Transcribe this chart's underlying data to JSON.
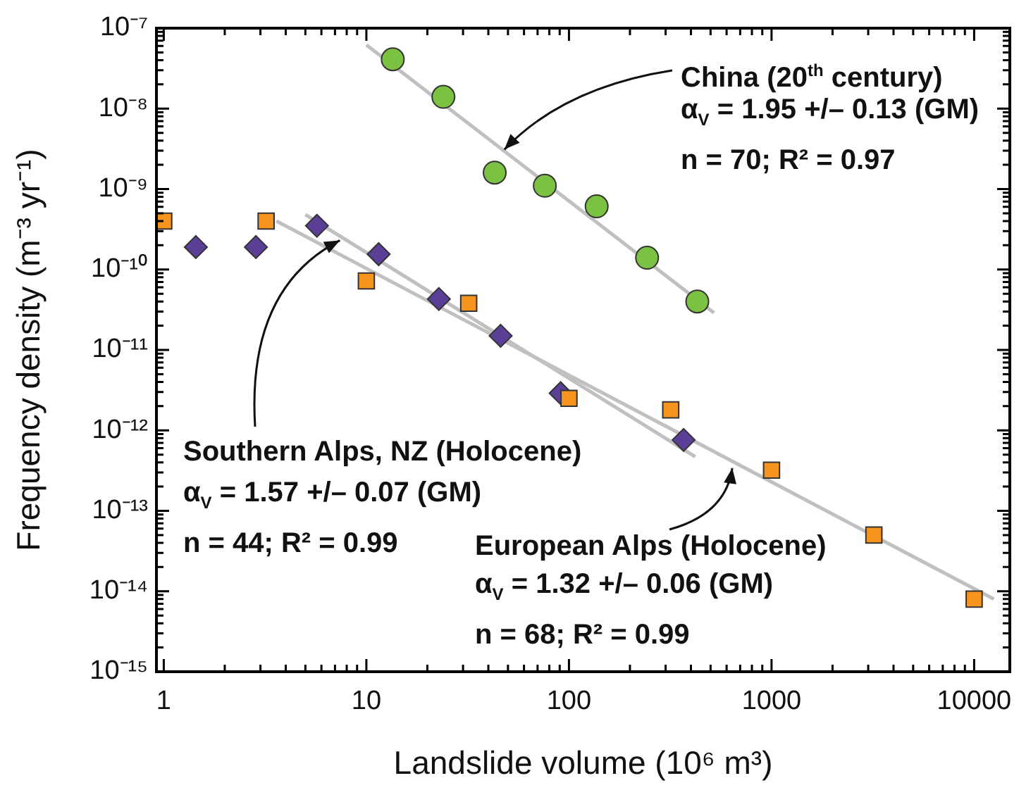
{
  "chart_data": {
    "type": "scatter",
    "xlabel": "Landslide volume (10⁶ m³)",
    "ylabel": "Frequency density (m⁻³ yr⁻¹)",
    "log": "xy",
    "grid": false,
    "legend": false,
    "xlim": [
      0.92,
      15000
    ],
    "ylim": [
      1e-15,
      1e-07
    ],
    "xticks": [
      1,
      {
        "value": 2,
        "label": null
      },
      {
        "value": 3,
        "label": null
      },
      {
        "value": 4,
        "label": null
      },
      {
        "value": 5,
        "label": null
      },
      {
        "value": 6,
        "label": null
      },
      {
        "value": 7,
        "label": null
      },
      {
        "value": 8,
        "label": null
      },
      {
        "value": 9,
        "label": null
      },
      10,
      {
        "value": 20,
        "label": null
      },
      {
        "value": 30,
        "label": null
      },
      {
        "value": 40,
        "label": null
      },
      {
        "value": 50,
        "label": null
      },
      {
        "value": 60,
        "label": null
      },
      {
        "value": 70,
        "label": null
      },
      {
        "value": 80,
        "label": null
      },
      {
        "value": 90,
        "label": null
      },
      100,
      {
        "value": 200,
        "label": null
      },
      {
        "value": 300,
        "label": null
      },
      {
        "value": 400,
        "label": null
      },
      {
        "value": 500,
        "label": null
      },
      {
        "value": 600,
        "label": null
      },
      {
        "value": 700,
        "label": null
      },
      {
        "value": 800,
        "label": null
      },
      {
        "value": 900,
        "label": null
      },
      1000,
      {
        "value": 2000,
        "label": null
      },
      {
        "value": 3000,
        "label": null
      },
      {
        "value": 4000,
        "label": null
      },
      {
        "value": 5000,
        "label": null
      },
      {
        "value": 6000,
        "label": null
      },
      {
        "value": 7000,
        "label": null
      },
      {
        "value": 8000,
        "label": null
      },
      {
        "value": 9000,
        "label": null
      },
      10000
    ],
    "yticks": [
      {
        "value": 1e-15,
        "label": "10⁻¹⁵"
      },
      {
        "value": 2e-15,
        "label": null
      },
      {
        "value": 3e-15,
        "label": null
      },
      {
        "value": 4e-15,
        "label": null
      },
      {
        "value": 5e-15,
        "label": null
      },
      {
        "value": 6e-15,
        "label": null
      },
      {
        "value": 7e-15,
        "label": null
      },
      {
        "value": 8e-15,
        "label": null
      },
      {
        "value": 9e-15,
        "label": null
      },
      {
        "value": 1e-14,
        "label": "10⁻¹⁴"
      },
      {
        "value": 2e-14,
        "label": null
      },
      {
        "value": 3e-14,
        "label": null
      },
      {
        "value": 4e-14,
        "label": null
      },
      {
        "value": 5e-14,
        "label": null
      },
      {
        "value": 6e-14,
        "label": null
      },
      {
        "value": 7e-14,
        "label": null
      },
      {
        "value": 8e-14,
        "label": null
      },
      {
        "value": 9e-14,
        "label": null
      },
      {
        "value": 1e-13,
        "label": "10⁻¹³"
      },
      {
        "value": 2e-13,
        "label": null
      },
      {
        "value": 3e-13,
        "label": null
      },
      {
        "value": 4e-13,
        "label": null
      },
      {
        "value": 5e-13,
        "label": null
      },
      {
        "value": 6e-13,
        "label": null
      },
      {
        "value": 7e-13,
        "label": null
      },
      {
        "value": 8e-13,
        "label": null
      },
      {
        "value": 9e-13,
        "label": null
      },
      {
        "value": 1e-12,
        "label": "10⁻¹²"
      },
      {
        "value": 2e-12,
        "label": null
      },
      {
        "value": 3e-12,
        "label": null
      },
      {
        "value": 4e-12,
        "label": null
      },
      {
        "value": 5e-12,
        "label": null
      },
      {
        "value": 6e-12,
        "label": null
      },
      {
        "value": 7e-12,
        "label": null
      },
      {
        "value": 8e-12,
        "label": null
      },
      {
        "value": 9e-12,
        "label": null
      },
      {
        "value": 1e-11,
        "label": "10⁻¹¹"
      },
      {
        "value": 2e-11,
        "label": null
      },
      {
        "value": 3e-11,
        "label": null
      },
      {
        "value": 4e-11,
        "label": null
      },
      {
        "value": 5e-11,
        "label": null
      },
      {
        "value": 6e-11,
        "label": null
      },
      {
        "value": 7e-11,
        "label": null
      },
      {
        "value": 8e-11,
        "label": null
      },
      {
        "value": 9e-11,
        "label": null
      },
      {
        "value": 1e-10,
        "label": "10⁻¹⁰"
      },
      {
        "value": 2e-10,
        "label": null
      },
      {
        "value": 3e-10,
        "label": null
      },
      {
        "value": 4e-10,
        "label": null
      },
      {
        "value": 5e-10,
        "label": null
      },
      {
        "value": 6e-10,
        "label": null
      },
      {
        "value": 7e-10,
        "label": null
      },
      {
        "value": 8e-10,
        "label": null
      },
      {
        "value": 9e-10,
        "label": null
      },
      {
        "value": 1e-09,
        "label": "10⁻⁹"
      },
      {
        "value": 2e-09,
        "label": null
      },
      {
        "value": 3e-09,
        "label": null
      },
      {
        "value": 4e-09,
        "label": null
      },
      {
        "value": 5e-09,
        "label": null
      },
      {
        "value": 6e-09,
        "label": null
      },
      {
        "value": 7e-09,
        "label": null
      },
      {
        "value": 8e-09,
        "label": null
      },
      {
        "value": 9e-09,
        "label": null
      },
      {
        "value": 1e-08,
        "label": "10⁻⁸"
      },
      {
        "value": 2e-08,
        "label": null
      },
      {
        "value": 3e-08,
        "label": null
      },
      {
        "value": 4e-08,
        "label": null
      },
      {
        "value": 5e-08,
        "label": null
      },
      {
        "value": 6e-08,
        "label": null
      },
      {
        "value": 7e-08,
        "label": null
      },
      {
        "value": 8e-08,
        "label": null
      },
      {
        "value": 9e-08,
        "label": null
      },
      {
        "value": 1e-07,
        "label": "10⁻⁷"
      }
    ],
    "series": [
      {
        "type": "line",
        "color": "#c0c0c0",
        "marker": "none",
        "x": [
          10,
          520
        ],
        "values": [
          6.2e-08,
          2.9e-11
        ]
      },
      {
        "type": "line",
        "color": "#c0c0c0",
        "marker": "none",
        "x": [
          5,
          420
        ],
        "values": [
          4.8e-10,
          4.7e-13
        ]
      },
      {
        "type": "line",
        "color": "#c0c0c0",
        "marker": "none",
        "x": [
          3.6,
          12500
        ],
        "values": [
          4e-10,
          8e-15
        ]
      },
      {
        "type": "scatter",
        "color": "#7cc242",
        "marker": "circle",
        "x": [
          13.5,
          24,
          43,
          76,
          137,
          243,
          430
        ],
        "values": [
          4.1e-08,
          1.4e-08,
          1.6e-09,
          1.1e-09,
          6.1e-10,
          1.4e-10,
          4e-11
        ]
      },
      {
        "type": "scatter",
        "color": "#f7941e",
        "marker": "square",
        "x": [
          1,
          3.2,
          10,
          32,
          100,
          318,
          1000,
          3200,
          10000
        ],
        "values": [
          4e-10,
          4e-10,
          7.2e-11,
          3.8e-11,
          2.5e-12,
          1.8e-12,
          3.2e-13,
          5e-14,
          8e-15
        ]
      },
      {
        "type": "scatter",
        "color": "#5b3f96",
        "marker": "diamond",
        "x": [
          1.44,
          2.85,
          5.7,
          11.5,
          22.8,
          46,
          91,
          368
        ],
        "values": [
          1.9e-10,
          1.9e-10,
          3.5e-10,
          1.55e-10,
          4.3e-11,
          1.5e-11,
          2.9e-12,
          7.6e-13
        ]
      }
    ],
    "annotations": [
      {
        "text": "China (20$^{th}$ century)",
        "x": 48,
        "y": 3.1e-09
      },
      "α$_{V}$ = 1.95 +/– 0.13 (GM)",
      "n = 70; R² = 0.97",
      {
        "text": "Southern Alps, NZ (Holocene)",
        "x": 7.4,
        "y": 2.3e-10
      },
      "α$_{V}$ = 1.57 +/– 0.07 (GM)",
      "n = 44; R² = 0.99",
      {
        "text": "European Alps (Holocene)",
        "x": 640,
        "y": 3.4e-13
      },
      "α$_{V}$ = 1.32 +/– 0.06 (GM)",
      "n = 68; R² = 0.99"
    ]
  }
}
